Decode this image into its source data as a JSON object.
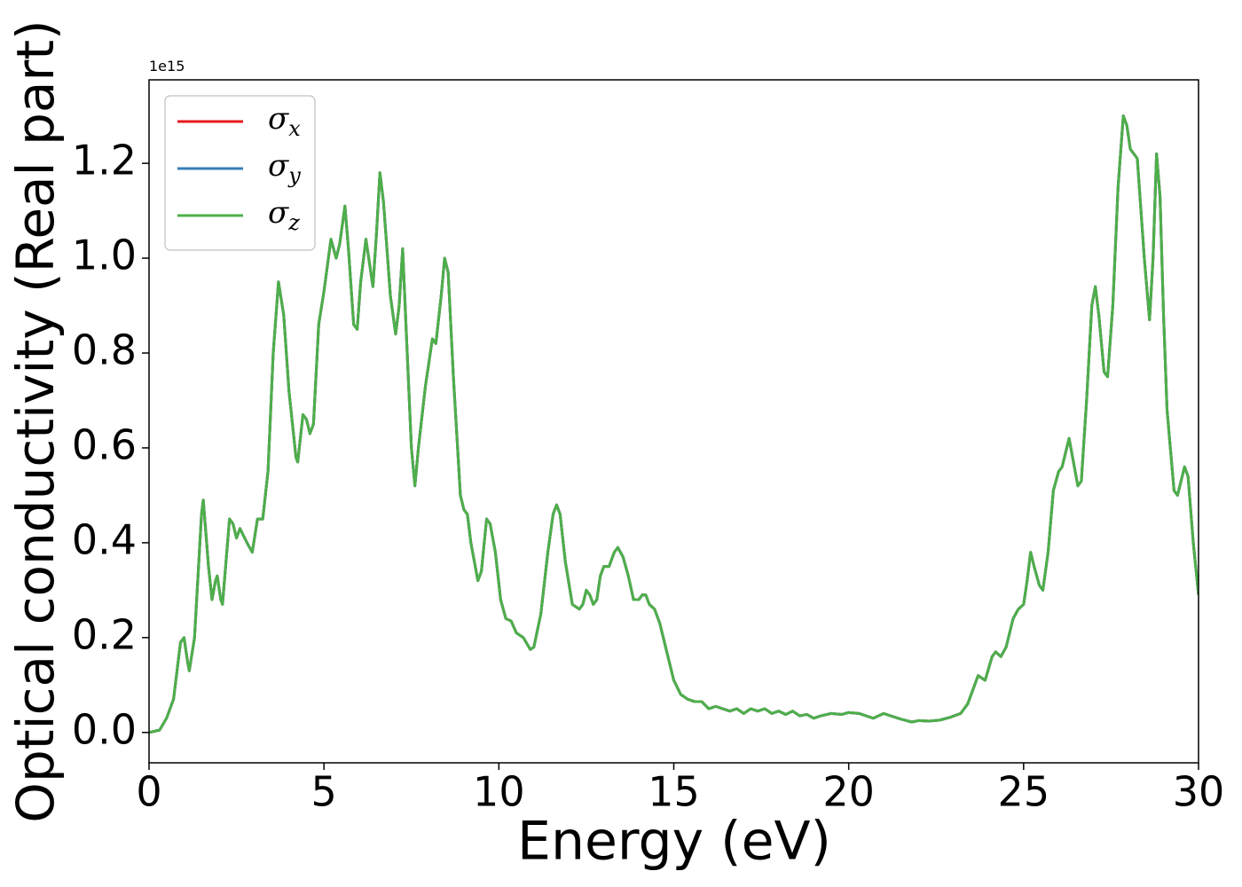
{
  "chart_data": {
    "type": "line",
    "xlabel": "Energy (eV)",
    "ylabel": "Optical conductivity (Real part)",
    "y_offset_label": "1e15",
    "xlim": [
      0,
      30
    ],
    "xticks": [
      0,
      5,
      10,
      15,
      20,
      25,
      30
    ],
    "ylim": [
      -0.064,
      1.376
    ],
    "yticks": [
      {
        "value": 0,
        "label": "0.0"
      },
      0.2,
      0.4,
      0.6,
      0.8,
      {
        "value": 1,
        "label": "1.0"
      },
      1.2
    ],
    "legend": "upper left",
    "x": [
      0,
      0.3,
      0.5,
      0.7,
      0.9,
      1.0,
      1.1,
      1.15,
      1.3,
      1.5,
      1.55,
      1.7,
      1.8,
      1.9,
      1.95,
      2.05,
      2.1,
      2.3,
      2.4,
      2.5,
      2.6,
      2.8,
      2.95,
      3.1,
      3.25,
      3.4,
      3.55,
      3.7,
      3.85,
      4.0,
      4.2,
      4.25,
      4.4,
      4.5,
      4.6,
      4.7,
      4.85,
      5.0,
      5.2,
      5.35,
      5.45,
      5.6,
      5.7,
      5.85,
      5.95,
      6.05,
      6.2,
      6.3,
      6.4,
      6.5,
      6.6,
      6.7,
      6.9,
      7.05,
      7.15,
      7.25,
      7.35,
      7.5,
      7.6,
      7.7,
      7.9,
      8.1,
      8.2,
      8.35,
      8.45,
      8.55,
      8.7,
      8.9,
      9.0,
      9.1,
      9.2,
      9.4,
      9.5,
      9.65,
      9.75,
      9.9,
      10.05,
      10.2,
      10.35,
      10.5,
      10.7,
      10.9,
      11.0,
      11.2,
      11.4,
      11.55,
      11.65,
      11.75,
      11.9,
      12.1,
      12.3,
      12.4,
      12.5,
      12.6,
      12.7,
      12.8,
      12.9,
      13.0,
      13.15,
      13.3,
      13.4,
      13.55,
      13.7,
      13.85,
      14.0,
      14.1,
      14.2,
      14.3,
      14.45,
      14.6,
      14.8,
      15.0,
      15.2,
      15.4,
      15.6,
      15.8,
      16.0,
      16.2,
      16.4,
      16.6,
      16.8,
      17.0,
      17.2,
      17.4,
      17.6,
      17.8,
      18.0,
      18.2,
      18.4,
      18.6,
      18.8,
      19.0,
      19.2,
      19.5,
      19.8,
      20.0,
      20.3,
      20.5,
      20.7,
      21.0,
      21.2,
      21.5,
      21.8,
      22.0,
      22.3,
      22.6,
      22.9,
      23.2,
      23.4,
      23.6,
      23.7,
      23.9,
      24.1,
      24.2,
      24.35,
      24.5,
      24.7,
      24.85,
      25.0,
      25.1,
      25.2,
      25.3,
      25.45,
      25.55,
      25.7,
      25.85,
      26.0,
      26.1,
      26.3,
      26.4,
      26.55,
      26.65,
      26.8,
      26.95,
      27.05,
      27.15,
      27.3,
      27.4,
      27.55,
      27.7,
      27.85,
      27.95,
      28.05,
      28.15,
      28.25,
      28.45,
      28.6,
      28.7,
      28.8,
      28.9,
      29.0,
      29.1,
      29.3,
      29.4,
      29.5,
      29.6,
      29.7,
      29.85,
      30.0
    ],
    "series": [
      {
        "name": "σx",
        "color": "#e41a1c",
        "values": [
          0.0,
          0.005,
          0.03,
          0.07,
          0.19,
          0.2,
          0.15,
          0.13,
          0.2,
          0.46,
          0.49,
          0.35,
          0.28,
          0.32,
          0.33,
          0.28,
          0.27,
          0.45,
          0.44,
          0.41,
          0.43,
          0.4,
          0.38,
          0.45,
          0.45,
          0.55,
          0.8,
          0.95,
          0.88,
          0.72,
          0.58,
          0.57,
          0.67,
          0.66,
          0.63,
          0.65,
          0.86,
          0.93,
          1.04,
          1.0,
          1.03,
          1.11,
          1.02,
          0.86,
          0.85,
          0.95,
          1.04,
          0.99,
          0.94,
          1.05,
          1.18,
          1.12,
          0.92,
          0.84,
          0.9,
          1.02,
          0.85,
          0.6,
          0.52,
          0.6,
          0.73,
          0.83,
          0.82,
          0.92,
          1.0,
          0.97,
          0.75,
          0.5,
          0.47,
          0.46,
          0.4,
          0.32,
          0.34,
          0.45,
          0.44,
          0.38,
          0.28,
          0.24,
          0.235,
          0.21,
          0.2,
          0.175,
          0.18,
          0.25,
          0.38,
          0.46,
          0.48,
          0.46,
          0.36,
          0.27,
          0.26,
          0.27,
          0.3,
          0.29,
          0.27,
          0.28,
          0.33,
          0.35,
          0.35,
          0.38,
          0.39,
          0.37,
          0.33,
          0.28,
          0.28,
          0.29,
          0.29,
          0.27,
          0.26,
          0.23,
          0.17,
          0.11,
          0.08,
          0.07,
          0.065,
          0.065,
          0.05,
          0.055,
          0.05,
          0.045,
          0.05,
          0.04,
          0.05,
          0.045,
          0.05,
          0.04,
          0.045,
          0.038,
          0.045,
          0.035,
          0.038,
          0.03,
          0.035,
          0.04,
          0.038,
          0.042,
          0.04,
          0.035,
          0.03,
          0.04,
          0.035,
          0.028,
          0.022,
          0.025,
          0.024,
          0.026,
          0.032,
          0.04,
          0.06,
          0.1,
          0.12,
          0.11,
          0.16,
          0.17,
          0.16,
          0.18,
          0.24,
          0.26,
          0.27,
          0.32,
          0.38,
          0.35,
          0.31,
          0.3,
          0.38,
          0.51,
          0.55,
          0.56,
          0.62,
          0.58,
          0.52,
          0.53,
          0.7,
          0.9,
          0.94,
          0.88,
          0.76,
          0.75,
          0.9,
          1.15,
          1.3,
          1.28,
          1.23,
          1.22,
          1.21,
          1.0,
          0.87,
          1.0,
          1.22,
          1.13,
          0.88,
          0.68,
          0.51,
          0.5,
          0.53,
          0.56,
          0.54,
          0.4,
          0.29
        ]
      },
      {
        "name": "σy",
        "color": "#377eb8",
        "values": [
          0.0,
          0.005,
          0.03,
          0.07,
          0.19,
          0.2,
          0.15,
          0.13,
          0.2,
          0.46,
          0.49,
          0.35,
          0.28,
          0.32,
          0.33,
          0.28,
          0.27,
          0.45,
          0.44,
          0.41,
          0.43,
          0.4,
          0.38,
          0.45,
          0.45,
          0.55,
          0.8,
          0.95,
          0.88,
          0.72,
          0.58,
          0.57,
          0.67,
          0.66,
          0.63,
          0.65,
          0.86,
          0.93,
          1.04,
          1.0,
          1.03,
          1.11,
          1.02,
          0.86,
          0.85,
          0.95,
          1.04,
          0.99,
          0.94,
          1.05,
          1.18,
          1.12,
          0.92,
          0.84,
          0.9,
          1.02,
          0.85,
          0.6,
          0.52,
          0.6,
          0.73,
          0.83,
          0.82,
          0.92,
          1.0,
          0.97,
          0.75,
          0.5,
          0.47,
          0.46,
          0.4,
          0.32,
          0.34,
          0.45,
          0.44,
          0.38,
          0.28,
          0.24,
          0.235,
          0.21,
          0.2,
          0.175,
          0.18,
          0.25,
          0.38,
          0.46,
          0.48,
          0.46,
          0.36,
          0.27,
          0.26,
          0.27,
          0.3,
          0.29,
          0.27,
          0.28,
          0.33,
          0.35,
          0.35,
          0.38,
          0.39,
          0.37,
          0.33,
          0.28,
          0.28,
          0.29,
          0.29,
          0.27,
          0.26,
          0.23,
          0.17,
          0.11,
          0.08,
          0.07,
          0.065,
          0.065,
          0.05,
          0.055,
          0.05,
          0.045,
          0.05,
          0.04,
          0.05,
          0.045,
          0.05,
          0.04,
          0.045,
          0.038,
          0.045,
          0.035,
          0.038,
          0.03,
          0.035,
          0.04,
          0.038,
          0.042,
          0.04,
          0.035,
          0.03,
          0.04,
          0.035,
          0.028,
          0.022,
          0.025,
          0.024,
          0.026,
          0.032,
          0.04,
          0.06,
          0.1,
          0.12,
          0.11,
          0.16,
          0.17,
          0.16,
          0.18,
          0.24,
          0.26,
          0.27,
          0.32,
          0.38,
          0.35,
          0.31,
          0.3,
          0.38,
          0.51,
          0.55,
          0.56,
          0.62,
          0.58,
          0.52,
          0.53,
          0.7,
          0.9,
          0.94,
          0.88,
          0.76,
          0.75,
          0.9,
          1.15,
          1.3,
          1.28,
          1.23,
          1.22,
          1.21,
          1.0,
          0.87,
          1.0,
          1.22,
          1.13,
          0.88,
          0.68,
          0.51,
          0.5,
          0.53,
          0.56,
          0.54,
          0.4,
          0.29
        ]
      },
      {
        "name": "σz",
        "color": "#4daf4a",
        "values": [
          0.0,
          0.005,
          0.03,
          0.07,
          0.19,
          0.2,
          0.15,
          0.13,
          0.2,
          0.46,
          0.49,
          0.35,
          0.28,
          0.32,
          0.33,
          0.28,
          0.27,
          0.45,
          0.44,
          0.41,
          0.43,
          0.4,
          0.38,
          0.45,
          0.45,
          0.55,
          0.8,
          0.95,
          0.88,
          0.72,
          0.58,
          0.57,
          0.67,
          0.66,
          0.63,
          0.65,
          0.86,
          0.93,
          1.04,
          1.0,
          1.03,
          1.11,
          1.02,
          0.86,
          0.85,
          0.95,
          1.04,
          0.99,
          0.94,
          1.05,
          1.18,
          1.12,
          0.92,
          0.84,
          0.9,
          1.02,
          0.85,
          0.6,
          0.52,
          0.6,
          0.73,
          0.83,
          0.82,
          0.92,
          1.0,
          0.97,
          0.75,
          0.5,
          0.47,
          0.46,
          0.4,
          0.32,
          0.34,
          0.45,
          0.44,
          0.38,
          0.28,
          0.24,
          0.235,
          0.21,
          0.2,
          0.175,
          0.18,
          0.25,
          0.38,
          0.46,
          0.48,
          0.46,
          0.36,
          0.27,
          0.26,
          0.27,
          0.3,
          0.29,
          0.27,
          0.28,
          0.33,
          0.35,
          0.35,
          0.38,
          0.39,
          0.37,
          0.33,
          0.28,
          0.28,
          0.29,
          0.29,
          0.27,
          0.26,
          0.23,
          0.17,
          0.11,
          0.08,
          0.07,
          0.065,
          0.065,
          0.05,
          0.055,
          0.05,
          0.045,
          0.05,
          0.04,
          0.05,
          0.045,
          0.05,
          0.04,
          0.045,
          0.038,
          0.045,
          0.035,
          0.038,
          0.03,
          0.035,
          0.04,
          0.038,
          0.042,
          0.04,
          0.035,
          0.03,
          0.04,
          0.035,
          0.028,
          0.022,
          0.025,
          0.024,
          0.026,
          0.032,
          0.04,
          0.06,
          0.1,
          0.12,
          0.11,
          0.16,
          0.17,
          0.16,
          0.18,
          0.24,
          0.26,
          0.27,
          0.32,
          0.38,
          0.35,
          0.31,
          0.3,
          0.38,
          0.51,
          0.55,
          0.56,
          0.62,
          0.58,
          0.52,
          0.53,
          0.7,
          0.9,
          0.94,
          0.88,
          0.76,
          0.75,
          0.9,
          1.15,
          1.3,
          1.28,
          1.23,
          1.22,
          1.21,
          1.0,
          0.87,
          1.0,
          1.22,
          1.13,
          0.88,
          0.68,
          0.51,
          0.5,
          0.53,
          0.56,
          0.54,
          0.4,
          0.29
        ]
      }
    ]
  }
}
